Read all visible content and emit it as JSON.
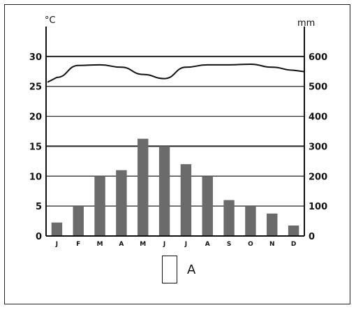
{
  "chart_data": {
    "type": "bar",
    "title": "",
    "xlabel": "",
    "ylabel": "°C",
    "y2label": "mm",
    "categories": [
      "J",
      "F",
      "M",
      "A",
      "M",
      "J",
      "J",
      "A",
      "S",
      "O",
      "N",
      "D"
    ],
    "series": [
      {
        "type": "line",
        "axis": "left",
        "values": [
          26.5,
          28.5,
          28.6,
          28.2,
          27.0,
          26.3,
          28.2,
          28.6,
          28.6,
          28.7,
          28.2,
          27.7
        ]
      },
      {
        "type": "bar",
        "axis": "right",
        "values": [
          45,
          100,
          200,
          220,
          325,
          300,
          240,
          200,
          120,
          100,
          75,
          35
        ]
      }
    ],
    "ylim": [
      0,
      35
    ],
    "y2lim": [
      0,
      700
    ],
    "yticks": [
      "0",
      "5",
      "10",
      "15",
      "20",
      "25",
      "30"
    ],
    "y2ticks": [
      "0",
      "100",
      "200",
      "300",
      "400",
      "500",
      "600"
    ],
    "grid": true,
    "legend": {
      "label": "A",
      "placement": "bottom-center"
    },
    "colors": {
      "bar": "#6b6b6b",
      "line": "#111111",
      "grid": "#222222"
    }
  }
}
